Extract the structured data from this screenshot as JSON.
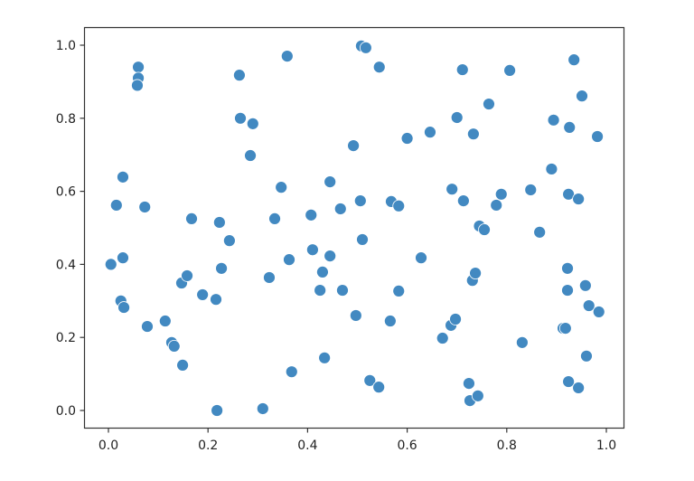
{
  "chart_data": {
    "type": "scatter",
    "title": "",
    "xlabel": "",
    "ylabel": "",
    "xlim": [
      -0.05,
      1.035
    ],
    "ylim": [
      -0.047,
      1.05
    ],
    "xticks": [
      "0.0",
      "0.2",
      "0.4",
      "0.6",
      "0.8",
      "1.0"
    ],
    "yticks": [
      "0.0",
      "0.2",
      "0.4",
      "0.6",
      "0.8",
      "1.0"
    ],
    "grid": false,
    "marker_color": "#4289c1",
    "points": [
      [
        0.005,
        0.4
      ],
      [
        0.016,
        0.562
      ],
      [
        0.029,
        0.639
      ],
      [
        0.029,
        0.418
      ],
      [
        0.025,
        0.3
      ],
      [
        0.031,
        0.282
      ],
      [
        0.06,
        0.94
      ],
      [
        0.06,
        0.91
      ],
      [
        0.058,
        0.89
      ],
      [
        0.073,
        0.557
      ],
      [
        0.078,
        0.23
      ],
      [
        0.114,
        0.245
      ],
      [
        0.127,
        0.186
      ],
      [
        0.132,
        0.176
      ],
      [
        0.149,
        0.124
      ],
      [
        0.147,
        0.349
      ],
      [
        0.158,
        0.369
      ],
      [
        0.167,
        0.525
      ],
      [
        0.189,
        0.317
      ],
      [
        0.216,
        0.304
      ],
      [
        0.223,
        0.515
      ],
      [
        0.227,
        0.389
      ],
      [
        0.218,
        0.0
      ],
      [
        0.243,
        0.465
      ],
      [
        0.263,
        0.918
      ],
      [
        0.265,
        0.8
      ],
      [
        0.29,
        0.785
      ],
      [
        0.285,
        0.698
      ],
      [
        0.31,
        0.005
      ],
      [
        0.323,
        0.364
      ],
      [
        0.334,
        0.525
      ],
      [
        0.347,
        0.611
      ],
      [
        0.359,
        0.97
      ],
      [
        0.363,
        0.413
      ],
      [
        0.368,
        0.106
      ],
      [
        0.407,
        0.535
      ],
      [
        0.41,
        0.44
      ],
      [
        0.425,
        0.329
      ],
      [
        0.43,
        0.379
      ],
      [
        0.434,
        0.144
      ],
      [
        0.445,
        0.626
      ],
      [
        0.445,
        0.423
      ],
      [
        0.466,
        0.552
      ],
      [
        0.47,
        0.329
      ],
      [
        0.492,
        0.725
      ],
      [
        0.497,
        0.26
      ],
      [
        0.508,
        0.998
      ],
      [
        0.517,
        0.993
      ],
      [
        0.506,
        0.574
      ],
      [
        0.51,
        0.468
      ],
      [
        0.544,
        0.94
      ],
      [
        0.525,
        0.082
      ],
      [
        0.543,
        0.064
      ],
      [
        0.566,
        0.245
      ],
      [
        0.568,
        0.572
      ],
      [
        0.583,
        0.56
      ],
      [
        0.583,
        0.327
      ],
      [
        0.6,
        0.745
      ],
      [
        0.628,
        0.418
      ],
      [
        0.646,
        0.762
      ],
      [
        0.671,
        0.198
      ],
      [
        0.688,
        0.233
      ],
      [
        0.697,
        0.25
      ],
      [
        0.69,
        0.606
      ],
      [
        0.7,
        0.802
      ],
      [
        0.711,
        0.933
      ],
      [
        0.713,
        0.574
      ],
      [
        0.724,
        0.074
      ],
      [
        0.726,
        0.027
      ],
      [
        0.731,
        0.356
      ],
      [
        0.737,
        0.376
      ],
      [
        0.733,
        0.757
      ],
      [
        0.742,
        0.04
      ],
      [
        0.745,
        0.505
      ],
      [
        0.755,
        0.495
      ],
      [
        0.764,
        0.839
      ],
      [
        0.779,
        0.562
      ],
      [
        0.789,
        0.592
      ],
      [
        0.806,
        0.931
      ],
      [
        0.831,
        0.186
      ],
      [
        0.848,
        0.604
      ],
      [
        0.866,
        0.488
      ],
      [
        0.89,
        0.661
      ],
      [
        0.894,
        0.795
      ],
      [
        0.913,
        0.225
      ],
      [
        0.918,
        0.225
      ],
      [
        0.922,
        0.389
      ],
      [
        0.922,
        0.329
      ],
      [
        0.924,
        0.079
      ],
      [
        0.924,
        0.592
      ],
      [
        0.926,
        0.775
      ],
      [
        0.935,
        0.96
      ],
      [
        0.944,
        0.579
      ],
      [
        0.944,
        0.062
      ],
      [
        0.951,
        0.861
      ],
      [
        0.958,
        0.342
      ],
      [
        0.96,
        0.149
      ],
      [
        0.965,
        0.287
      ],
      [
        0.982,
        0.75
      ],
      [
        0.985,
        0.27
      ]
    ]
  }
}
